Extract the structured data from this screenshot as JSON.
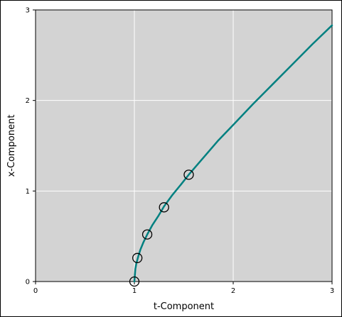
{
  "chart_data": {
    "type": "line",
    "title": "",
    "xlabel": "t-Component",
    "ylabel": "x-Component",
    "xlim": [
      0,
      3
    ],
    "ylim": [
      0,
      3
    ],
    "xticks": [
      0,
      1,
      2,
      3
    ],
    "yticks": [
      0,
      1,
      2,
      3
    ],
    "grid": true,
    "background": "#d3d3d3",
    "grid_color": "#ffffff",
    "curve_color": "#008080",
    "series": [
      {
        "x": [
          1.0,
          1.01,
          1.02,
          1.04,
          1.06,
          1.09,
          1.13,
          1.18,
          1.24,
          1.3,
          1.38,
          1.47,
          1.55,
          1.7,
          1.85,
          2.0,
          2.2,
          2.4,
          2.6,
          2.8,
          3.0
        ],
        "y": [
          0.0,
          0.14,
          0.2,
          0.28,
          0.35,
          0.43,
          0.52,
          0.62,
          0.72,
          0.83,
          0.95,
          1.07,
          1.18,
          1.37,
          1.56,
          1.73,
          1.96,
          2.18,
          2.4,
          2.62,
          2.83
        ]
      }
    ],
    "markers": [
      {
        "x": 1.0,
        "y": 0.0
      },
      {
        "x": 1.03,
        "y": 0.26
      },
      {
        "x": 1.13,
        "y": 0.52
      },
      {
        "x": 1.3,
        "y": 0.82
      },
      {
        "x": 1.55,
        "y": 1.18
      }
    ]
  }
}
